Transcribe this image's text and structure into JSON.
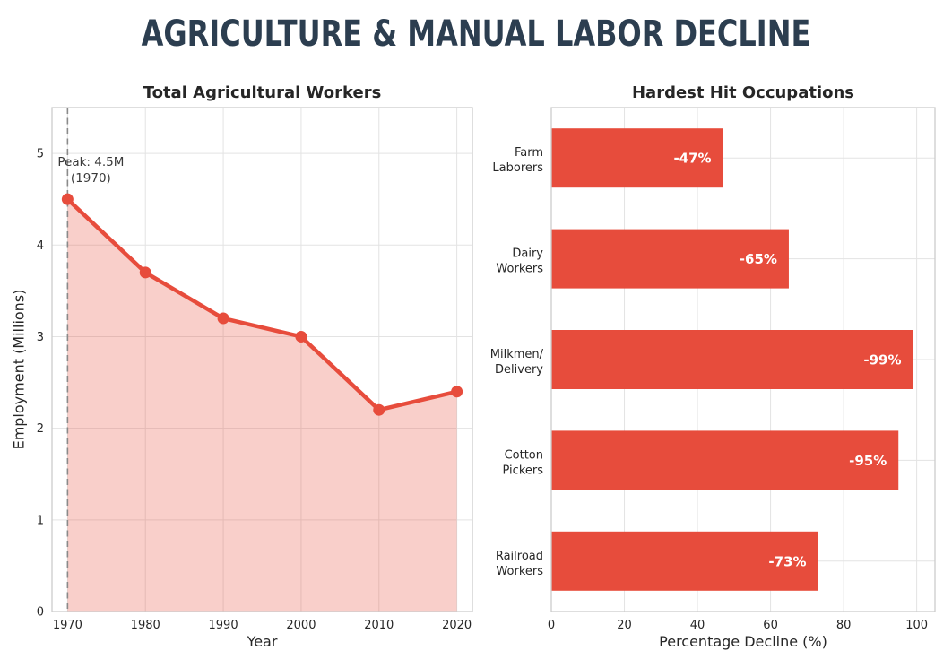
{
  "main_title": "AGRICULTURE & MANUAL LABOR DECLINE",
  "chart_data": [
    {
      "type": "area",
      "title": "Total Agricultural Workers",
      "xlabel": "Year",
      "ylabel": "Employment (Millions)",
      "x": [
        1970,
        1980,
        1990,
        2000,
        2010,
        2020
      ],
      "values": [
        4.5,
        3.7,
        3.2,
        3.0,
        2.2,
        2.4
      ],
      "xlim": [
        1968,
        2022
      ],
      "ylim": [
        0,
        5.5
      ],
      "xticks": [
        1970,
        1980,
        1990,
        2000,
        2010,
        2020
      ],
      "yticks": [
        0,
        1,
        2,
        3,
        4,
        5
      ],
      "grid": true,
      "line_color": "#e74c3c",
      "fill_color": "rgba(231,76,60,0.27)",
      "marker": "circle",
      "peak_annotation": {
        "lines": [
          "Peak: 4.5M",
          "(1970)"
        ],
        "at_x": 1970
      },
      "vline": {
        "at_x": 1970,
        "style": "dashed",
        "color": "#8a8a8a"
      }
    },
    {
      "type": "bar",
      "orientation": "horizontal",
      "title": "Hardest Hit Occupations",
      "xlabel": "Percentage Decline (%)",
      "categories": [
        "Farm\nLaborers",
        "Dairy\nWorkers",
        "Milkmen/\nDelivery",
        "Cotton\nPickers",
        "Railroad\nWorkers"
      ],
      "values": [
        47,
        65,
        99,
        95,
        73
      ],
      "bar_labels": [
        "-47%",
        "-65%",
        "-99%",
        "-95%",
        "-73%"
      ],
      "xlim": [
        0,
        105
      ],
      "xticks": [
        0,
        20,
        40,
        60,
        80,
        100
      ],
      "grid": true,
      "bar_color": "#e74c3c",
      "bar_label_color": "#ffffff"
    }
  ],
  "colors": {
    "title": "#2c3e50",
    "subtitle": "#262626",
    "axis_text": "#262626",
    "annotation_text": "#3a3a3a",
    "grid": "#e3e3e3",
    "spine": "#cccccc",
    "accent_red": "#e74c3c"
  }
}
